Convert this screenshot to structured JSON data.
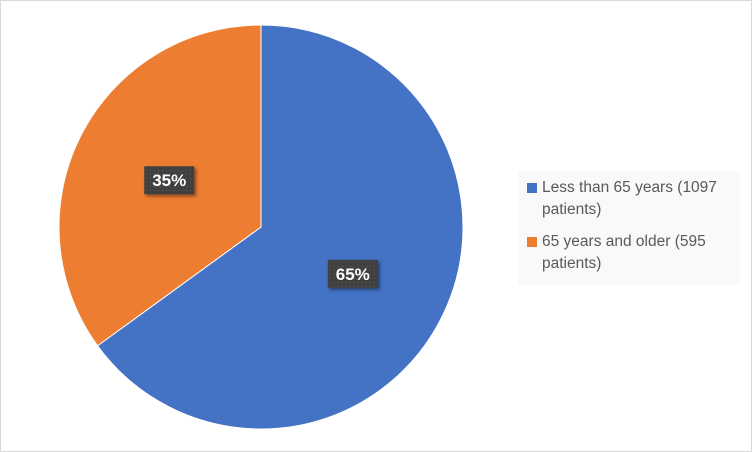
{
  "chart_data": {
    "type": "pie",
    "title": "",
    "categories": [
      "Less than 65 years (1097 patients)",
      "65 years and older (595 patients)"
    ],
    "values": [
      65,
      35
    ],
    "data_labels": [
      "65%",
      "35%"
    ],
    "colors": [
      "#4472c4",
      "#ed7d31"
    ],
    "start_angle": "top, clockwise",
    "legend_position": "right"
  }
}
